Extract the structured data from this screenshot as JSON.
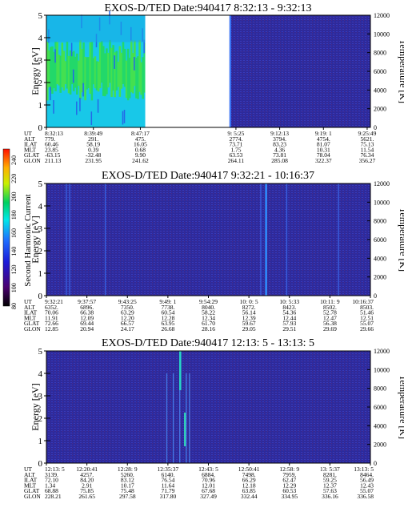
{
  "colorbar": {
    "label": "Second Harmonic Current",
    "ticks": [
      "240",
      "220",
      "200",
      "180",
      "160",
      "140",
      "120",
      "100",
      "80"
    ]
  },
  "panels": [
    {
      "title": "EXOS-D/TED   Date:940417  8:32:13 - 9:32:13",
      "ylabel": "Energy [eV]",
      "y2label": "Temperature [K]",
      "yticks": [
        "5",
        "4",
        "3",
        "2",
        "1",
        "0"
      ],
      "y2ticks": [
        "12000",
        "10000",
        "8000",
        "6000",
        "4000",
        "2000",
        "0"
      ],
      "row_labels": [
        "UT",
        "ALT",
        "ILAT",
        "MLT",
        "GLAT",
        "GLON"
      ],
      "columns": [
        {
          "time": "8:32:13",
          "values": [
            "779.",
            "60.46",
            "23.85",
            "-63.15",
            "211.13"
          ]
        },
        {
          "time": "8:39:49",
          "values": [
            "291.",
            "58.19",
            "0.39",
            "-32.48",
            "231.95"
          ]
        },
        {
          "time": "8:47:17",
          "values": [
            "475.",
            "16.05",
            "0.68",
            "9.90",
            "241.62"
          ]
        },
        {
          "time": "9: 5:25",
          "values": [
            "2774.",
            "73.71",
            "1.75",
            "63.53",
            "264.11"
          ]
        },
        {
          "time": "9:12:13",
          "values": [
            "3794.",
            "83.23",
            "4.36",
            "73.81",
            "285.08"
          ]
        },
        {
          "time": "9:19: 1",
          "values": [
            "4754.",
            "81.07",
            "10.31",
            "78.04",
            "322.37"
          ]
        },
        {
          "time": "9:25:49",
          "values": [
            "5621.",
            "75.13",
            "11.54",
            "76.34",
            "356.27"
          ]
        }
      ]
    },
    {
      "title": "EXOS-D/TED   Date:940417  9:32:21 - 10:16:37",
      "ylabel": "Energy [eV]",
      "y2label": "Temperature [K]",
      "yticks": [
        "5",
        "4",
        "3",
        "2",
        "1",
        "0"
      ],
      "y2ticks": [
        "12000",
        "10000",
        "8000",
        "6000",
        "4000",
        "2000",
        "0"
      ],
      "row_labels": [
        "UT",
        "ALT",
        "ILAT",
        "MLT",
        "GLAT",
        "GLON"
      ],
      "columns": [
        {
          "time": "9:32:21",
          "values": [
            "6352.",
            "70.06",
            "11.91",
            "72.66",
            "12.85"
          ]
        },
        {
          "time": "9:37:57",
          "values": [
            "6896.",
            "66.38",
            "12.09",
            "69.44",
            "20.94"
          ]
        },
        {
          "time": "9:43:25",
          "values": [
            "7350.",
            "63.29",
            "12.20",
            "66.57",
            "24.17"
          ]
        },
        {
          "time": "9:49: 1",
          "values": [
            "7738.",
            "60.54",
            "12.28",
            "63.95",
            "26.68"
          ]
        },
        {
          "time": "9:54:29",
          "values": [
            "8040.",
            "58.22",
            "12.34",
            "61.70",
            "28.16"
          ]
        },
        {
          "time": "10: 0: 5",
          "values": [
            "8272.",
            "56.14",
            "12.39",
            "59.67",
            "29.05"
          ]
        },
        {
          "time": "10: 5:33",
          "values": [
            "8423.",
            "54.36",
            "12.44",
            "57.93",
            "29.51"
          ]
        },
        {
          "time": "10:11: 9",
          "values": [
            "8502.",
            "52.78",
            "12.47",
            "56.38",
            "29.69"
          ]
        },
        {
          "time": "10:16:37",
          "values": [
            "8503.",
            "51.46",
            "12.51",
            "55.07",
            "29.66"
          ]
        }
      ]
    },
    {
      "title": "EXOS-D/TED   Date:940417  12:13: 5 - 13:13: 5",
      "ylabel": "Energy [eV]",
      "y2label": "Temperature [K]",
      "yticks": [
        "5",
        "4",
        "3",
        "2",
        "1",
        "0"
      ],
      "y2ticks": [
        "12000",
        "10000",
        "8000",
        "6000",
        "4000",
        "2000",
        "0"
      ],
      "row_labels": [
        "UT",
        "ALT",
        "ILAT",
        "MLT",
        "GLAT",
        "GLON"
      ],
      "columns": [
        {
          "time": "12:13: 5",
          "values": [
            "3139.",
            "72.10",
            "1.34",
            "68.88",
            "228.21"
          ]
        },
        {
          "time": "12:20:41",
          "values": [
            "4257.",
            "84.20",
            "2.91",
            "75.85",
            "261.65"
          ]
        },
        {
          "time": "12:28: 9",
          "values": [
            "5260.",
            "83.12",
            "10.17",
            "75.48",
            "297.58"
          ]
        },
        {
          "time": "12:35:37",
          "values": [
            "6140.",
            "76.54",
            "11.64",
            "71.79",
            "317.80"
          ]
        },
        {
          "time": "12:43: 5",
          "values": [
            "6884.",
            "70.96",
            "12.01",
            "67.68",
            "327.49"
          ]
        },
        {
          "time": "12:50:41",
          "values": [
            "7498.",
            "66.29",
            "12.18",
            "63.85",
            "332.44"
          ]
        },
        {
          "time": "12:58: 9",
          "values": [
            "7959.",
            "62.47",
            "12.29",
            "60.53",
            "334.95"
          ]
        },
        {
          "time": "13: 5:37",
          "values": [
            "8281.",
            "59.25",
            "12.37",
            "57.63",
            "336.16"
          ]
        },
        {
          "time": "13:13: 5",
          "values": [
            "8464.",
            "56.49",
            "12.43",
            "55.07",
            "336.58"
          ]
        }
      ]
    }
  ],
  "chart_data": [
    {
      "type": "heatmap",
      "title": "EXOS-D/TED   Date:940417  8:32:13 - 9:32:13",
      "xlabel": "UT",
      "ylabel": "Energy [eV]",
      "y2label": "Temperature [K]",
      "ylim": [
        0,
        5
      ],
      "y2lim": [
        0,
        12000
      ],
      "x_ticks": [
        "8:32:13",
        "8:39:49",
        "8:47:17",
        "9: 5:25",
        "9:12:13",
        "9:19: 1",
        "9:25:49"
      ],
      "data_gap": [
        "8:47:17",
        "9: 5:25"
      ],
      "colorbar_label": "Second Harmonic Current",
      "colorbar_range": [
        80,
        240
      ]
    },
    {
      "type": "heatmap",
      "title": "EXOS-D/TED   Date:940417  9:32:21 - 10:16:37",
      "xlabel": "UT",
      "ylabel": "Energy [eV]",
      "y2label": "Temperature [K]",
      "ylim": [
        0,
        5
      ],
      "y2lim": [
        0,
        12000
      ],
      "x_ticks": [
        "9:32:21",
        "9:37:57",
        "9:43:25",
        "9:49: 1",
        "9:54:29",
        "10: 0: 5",
        "10: 5:33",
        "10:11: 9",
        "10:16:37"
      ],
      "colorbar_label": "Second Harmonic Current",
      "colorbar_range": [
        80,
        240
      ]
    },
    {
      "type": "heatmap",
      "title": "EXOS-D/TED   Date:940417  12:13: 5 - 13:13: 5",
      "xlabel": "UT",
      "ylabel": "Energy [eV]",
      "y2label": "Temperature [K]",
      "ylim": [
        0,
        5
      ],
      "y2lim": [
        0,
        12000
      ],
      "x_ticks": [
        "12:13: 5",
        "12:20:41",
        "12:28: 9",
        "12:35:37",
        "12:43: 5",
        "12:50:41",
        "12:58: 9",
        "13: 5:37",
        "13:13: 5"
      ],
      "colorbar_label": "Second Harmonic Current",
      "colorbar_range": [
        80,
        240
      ]
    }
  ]
}
